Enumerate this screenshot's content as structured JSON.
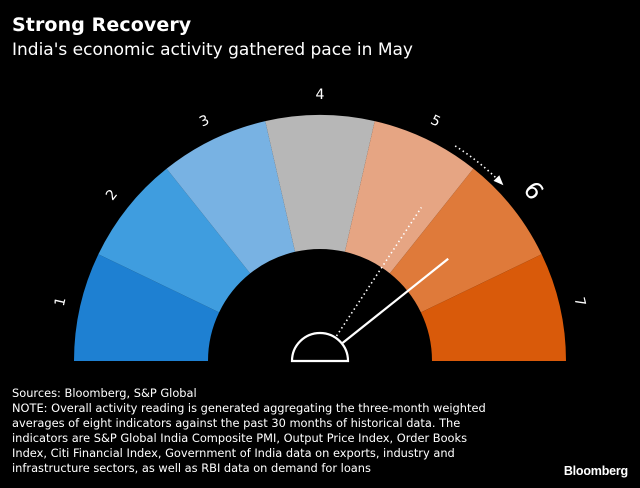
{
  "header": {
    "title": "Strong Recovery",
    "subtitle": "India's economic activity gathered pace in May"
  },
  "chart_data": {
    "type": "gauge",
    "scale_labels": [
      "1",
      "2",
      "3",
      "4",
      "5",
      "6",
      "7"
    ],
    "segment_colors": [
      "#1e80d2",
      "#3f9ddf",
      "#78b2e3",
      "#b7b7b7",
      "#e6a583",
      "#df7a3a",
      "#d95a0a"
    ],
    "previous_reading": 5.3,
    "current_reading": 6,
    "current_label": "6"
  },
  "footer": {
    "sources": "Sources: Bloomberg, S&P Global",
    "note_lines": [
      "NOTE: Overall activity reading is generated aggregating the three-month weighted",
      "averages of eight indicators against the past 30 months of historical data. The",
      "indicators are S&P Global India Composite PMI, Output Price Index, Order Books",
      "Index, Citi Financial Index, Government of India data on exports, industry and",
      "infrastructure sectors, as well as RBI data on demand for loans"
    ],
    "logo": "Bloomberg"
  }
}
